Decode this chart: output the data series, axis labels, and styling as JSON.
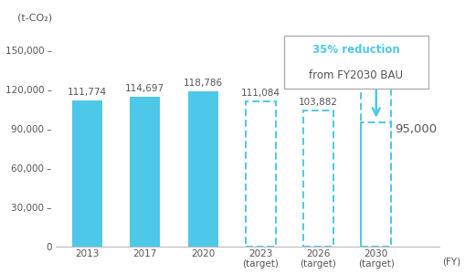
{
  "solid_bars": {
    "years": [
      "2013",
      "2017",
      "2020"
    ],
    "values": [
      111774,
      114697,
      118786
    ],
    "labels": [
      "111,774",
      "114,697",
      "118,786"
    ],
    "color": "#4DC8E8"
  },
  "dashed_bars": {
    "values": [
      111084,
      103882,
      95000
    ],
    "labels": [
      "111,084",
      "103,882",
      "95,000"
    ],
    "bau_value": 146000,
    "color": "#4DC8E8"
  },
  "yticks": [
    0,
    30000,
    60000,
    90000,
    120000,
    150000
  ],
  "ytick_labels": [
    "0",
    "30,000 –",
    "60,000 –",
    "90,000 –",
    "120,000 –",
    "150,000 –"
  ],
  "ylabel_line1": "(t-CO₂)",
  "ylabel_line2": "150,000 –",
  "xlabel": "(FY)",
  "annotation_text1": "35% reduction",
  "annotation_text2": "from FY2030 BAU",
  "annotation_color": "#4DC8E8",
  "text_color": "#555555",
  "background_color": "#ffffff",
  "bar_label_fontsize": 7.5,
  "axis_fontsize": 7.5,
  "annotation_fontsize": 8.5
}
